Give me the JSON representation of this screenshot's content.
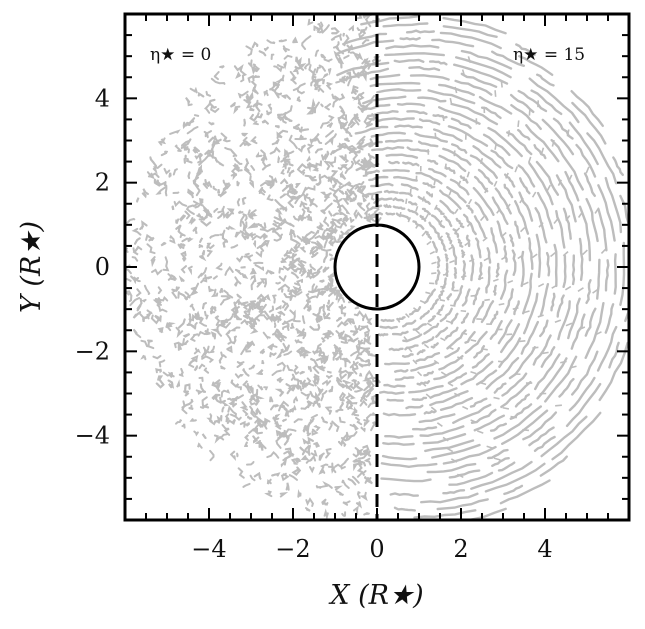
{
  "chart_data": {
    "type": "scatter",
    "title": "",
    "xlabel": "X (R★)",
    "ylabel": "Y (R★)",
    "xlim": [
      -6,
      6
    ],
    "ylim": [
      -6,
      6
    ],
    "x_ticks": [
      -4,
      -2,
      0,
      2,
      4
    ],
    "y_ticks": [
      -4,
      -2,
      0,
      2,
      4
    ],
    "x_tick_labels": [
      "−4",
      "−2",
      "0",
      "2",
      "4"
    ],
    "y_tick_labels": [
      "−4",
      "−2",
      "0",
      "2",
      "4"
    ],
    "grid": false,
    "star_radius": 1.0,
    "divider_x": 0,
    "panels": [
      {
        "side": "left",
        "label": "η★ = 0",
        "structure": "turbulent clumps",
        "color": "#bdbdbd"
      },
      {
        "side": "right",
        "label": "η★ = 15",
        "structure": "bow-shaped arcs",
        "color": "#bdbdbd"
      }
    ],
    "colors": {
      "contours": "#bdbdbd",
      "axes": "#000000",
      "star_fill": "#ffffff"
    }
  }
}
